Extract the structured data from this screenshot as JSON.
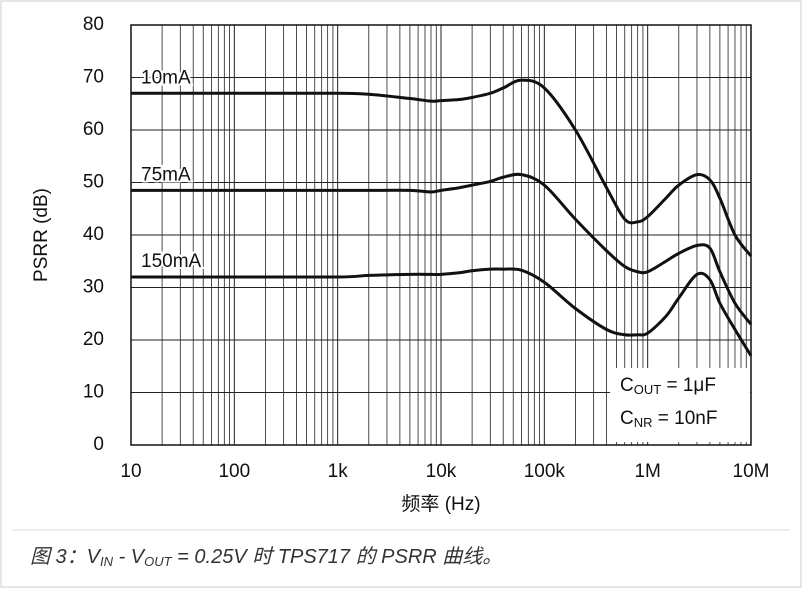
{
  "chart_data": {
    "type": "line",
    "xlabel": "频率 (Hz)",
    "ylabel": "PSRR (dB)",
    "xscale": "log",
    "grid": true,
    "xlim": [
      10,
      10000000
    ],
    "ylim": [
      0,
      80
    ],
    "xticks": [
      10,
      100,
      {
        "value": 1000,
        "label": "1k"
      },
      {
        "value": 10000,
        "label": "10k"
      },
      {
        "value": 100000,
        "label": "100k"
      },
      {
        "value": 1000000,
        "label": "1M"
      },
      {
        "value": 10000000,
        "label": "10M"
      }
    ],
    "yticks": [
      0,
      10,
      20,
      30,
      40,
      50,
      60,
      70,
      80
    ],
    "x": [
      10,
      100,
      1000,
      2000,
      5000,
      8000,
      10000,
      15000,
      20000,
      30000,
      40000,
      60000,
      100000,
      200000,
      400000,
      600000,
      800000,
      1000000,
      1500000,
      2000000,
      3000000,
      4000000,
      5000000,
      7000000,
      10000000
    ],
    "series": [
      {
        "name": "10mA",
        "color": "#111111",
        "values": [
          67,
          67,
          67,
          66.8,
          66,
          65.5,
          65.6,
          65.8,
          66.2,
          67,
          68,
          69.5,
          68,
          60,
          49,
          43,
          42.5,
          43.5,
          47,
          49.5,
          51.5,
          50.5,
          47,
          40,
          36
        ]
      },
      {
        "name": "75mA",
        "color": "#111111",
        "values": [
          48.5,
          48.5,
          48.5,
          48.5,
          48.5,
          48.2,
          48.5,
          49,
          49.5,
          50.2,
          51,
          51.5,
          49.5,
          43,
          37,
          34,
          33,
          33,
          35,
          36.5,
          38,
          37.5,
          33,
          27,
          23
        ]
      },
      {
        "name": "150mA",
        "color": "#111111",
        "values": [
          32,
          32,
          32,
          32.3,
          32.5,
          32.5,
          32.5,
          32.8,
          33.2,
          33.5,
          33.5,
          33.3,
          31,
          26,
          22,
          21,
          21,
          21.3,
          24.5,
          28,
          32.5,
          31.5,
          27,
          22,
          17
        ]
      }
    ],
    "annotations": [
      {
        "main": "C",
        "sub": "OUT",
        "rest": " = 1μF"
      },
      {
        "main": "C",
        "sub": "NR",
        "rest": " = 10nF"
      }
    ],
    "caption": [
      "图 3：V",
      "IN",
      " - V",
      "OUT",
      " = 0.25V 时 TPS717 的 PSRR 曲线。"
    ]
  }
}
